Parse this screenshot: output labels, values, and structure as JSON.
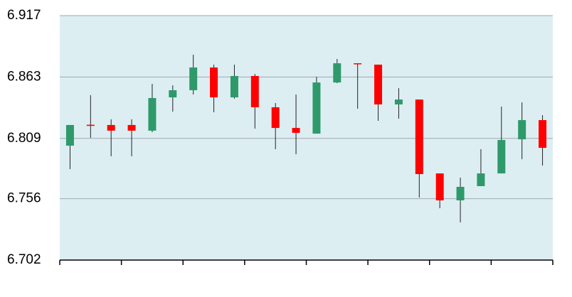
{
  "chart_data": {
    "type": "candlestick",
    "categories": [
      null,
      null,
      null,
      null,
      null,
      null,
      null,
      null,
      null,
      null,
      null,
      null,
      null,
      null,
      null,
      null,
      null,
      null,
      null,
      null,
      null,
      null,
      null,
      null
    ],
    "open": [
      6.8026,
      6.821,
      6.8208,
      6.8208,
      6.8158,
      6.8451,
      6.8514,
      6.8714,
      6.8451,
      6.8639,
      6.8364,
      6.8182,
      6.8132,
      6.8582,
      6.8751,
      6.8739,
      6.8389,
      6.8432,
      6.7782,
      6.7545,
      6.767,
      6.7782,
      6.8082,
      6.8251
    ],
    "high": [
      6.8208,
      6.847,
      6.8258,
      6.8258,
      6.857,
      6.8557,
      6.8826,
      6.8739,
      6.8739,
      6.8657,
      6.8401,
      6.8476,
      6.8632,
      6.8789,
      6.8751,
      6.8739,
      6.8532,
      6.8432,
      6.7782,
      6.7745,
      6.7995,
      6.837,
      6.8407,
      6.8295
    ],
    "low": [
      6.782,
      6.8095,
      6.7933,
      6.7933,
      6.8145,
      6.8326,
      6.8476,
      6.832,
      6.8439,
      6.8176,
      6.7995,
      6.7951,
      6.8132,
      6.8576,
      6.8351,
      6.8245,
      6.8264,
      6.757,
      6.7476,
      6.7351,
      6.767,
      6.7782,
      6.7907,
      6.7851
    ],
    "close": [
      6.8208,
      6.82,
      6.8158,
      6.8158,
      6.8445,
      6.8514,
      6.8714,
      6.8451,
      6.8639,
      6.8364,
      6.8182,
      6.8139,
      6.8582,
      6.8751,
      6.8745,
      6.8389,
      6.8432,
      6.7776,
      6.7545,
      6.7664,
      6.7782,
      6.8076,
      6.8251,
      6.8007
    ],
    "up_color": "#2e9a6a",
    "down_color": "#ff0000",
    "ylim": [
      6.702,
      6.917
    ],
    "yticks": [
      6.702,
      6.756,
      6.809,
      6.863,
      6.917
    ],
    "grid": true
  }
}
